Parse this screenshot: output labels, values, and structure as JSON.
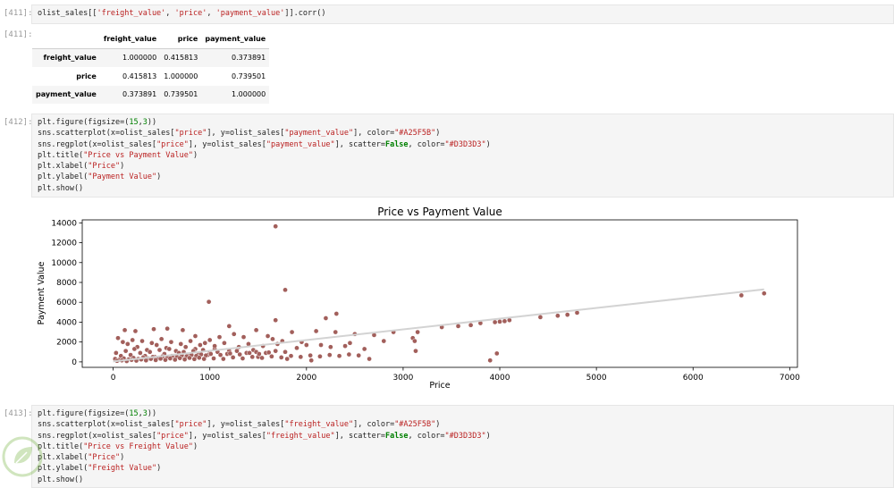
{
  "cells": [
    {
      "prompt": "[411]:",
      "code": [
        [
          {
            "t": "olist_sales[["
          },
          {
            "t": "'freight_value'",
            "c": "str"
          },
          {
            "t": ", "
          },
          {
            "t": "'price'",
            "c": "str"
          },
          {
            "t": ", "
          },
          {
            "t": "'payment_value'",
            "c": "str"
          },
          {
            "t": "]].corr()"
          }
        ]
      ]
    },
    {
      "prompt": "[412]:",
      "code": [
        [
          {
            "t": "plt.figure(figsize=("
          },
          {
            "t": "15",
            "c": "num"
          },
          {
            "t": ","
          },
          {
            "t": "3",
            "c": "num"
          },
          {
            "t": "))"
          }
        ],
        [
          {
            "t": "sns.scatterplot(x=olist_sales["
          },
          {
            "t": "\"price\"",
            "c": "str"
          },
          {
            "t": "], y=olist_sales["
          },
          {
            "t": "\"payment_value\"",
            "c": "str"
          },
          {
            "t": "], color="
          },
          {
            "t": "\"#A25F5B\"",
            "c": "str"
          },
          {
            "t": ")"
          }
        ],
        [
          {
            "t": "sns.regplot(x=olist_sales["
          },
          {
            "t": "\"price\"",
            "c": "str"
          },
          {
            "t": "], y=olist_sales["
          },
          {
            "t": "\"payment_value\"",
            "c": "str"
          },
          {
            "t": "], scatter="
          },
          {
            "t": "False",
            "c": "kw"
          },
          {
            "t": ", color="
          },
          {
            "t": "\"#D3D3D3\"",
            "c": "str"
          },
          {
            "t": ")"
          }
        ],
        [
          {
            "t": "plt.title("
          },
          {
            "t": "\"Price vs Payment Value\"",
            "c": "str"
          },
          {
            "t": ")"
          }
        ],
        [
          {
            "t": "plt.xlabel("
          },
          {
            "t": "\"Price\"",
            "c": "str"
          },
          {
            "t": ")"
          }
        ],
        [
          {
            "t": "plt.ylabel("
          },
          {
            "t": "\"Payment Value\"",
            "c": "str"
          },
          {
            "t": ")"
          }
        ],
        [
          {
            "t": "plt.show()"
          }
        ]
      ]
    },
    {
      "prompt": "[413]:",
      "code": [
        [
          {
            "t": "plt.figure(figsize=("
          },
          {
            "t": "15",
            "c": "num"
          },
          {
            "t": ","
          },
          {
            "t": "3",
            "c": "num"
          },
          {
            "t": "))"
          }
        ],
        [
          {
            "t": "sns.scatterplot(x=olist_sales["
          },
          {
            "t": "\"price\"",
            "c": "str"
          },
          {
            "t": "], y=olist_sales["
          },
          {
            "t": "\"freight_value\"",
            "c": "str"
          },
          {
            "t": "], color="
          },
          {
            "t": "\"#A25F5B\"",
            "c": "str"
          },
          {
            "t": ")"
          }
        ],
        [
          {
            "t": "sns.regplot(x=olist_sales["
          },
          {
            "t": "\"price\"",
            "c": "str"
          },
          {
            "t": "], y=olist_sales["
          },
          {
            "t": "\"freight_value\"",
            "c": "str"
          },
          {
            "t": "], scatter="
          },
          {
            "t": "False",
            "c": "kw"
          },
          {
            "t": ", color="
          },
          {
            "t": "\"#D3D3D3\"",
            "c": "str"
          },
          {
            "t": ")"
          }
        ],
        [
          {
            "t": "plt.title("
          },
          {
            "t": "\"Price vs Freight Value\"",
            "c": "str"
          },
          {
            "t": ")"
          }
        ],
        [
          {
            "t": "plt.xlabel("
          },
          {
            "t": "\"Price\"",
            "c": "str"
          },
          {
            "t": ")"
          }
        ],
        [
          {
            "t": "plt.ylabel("
          },
          {
            "t": "\"Freight Value\"",
            "c": "str"
          },
          {
            "t": ")"
          }
        ],
        [
          {
            "t": "plt.show()"
          }
        ]
      ]
    }
  ],
  "output_prompt": "[411]:",
  "dataframe": {
    "columns": [
      "freight_value",
      "price",
      "payment_value"
    ],
    "rows": [
      {
        "index": "freight_value",
        "values": [
          "1.000000",
          "0.415813",
          "0.373891"
        ]
      },
      {
        "index": "price",
        "values": [
          "0.415813",
          "1.000000",
          "0.739501"
        ]
      },
      {
        "index": "payment_value",
        "values": [
          "0.373891",
          "0.739501",
          "1.000000"
        ]
      }
    ]
  },
  "chart_data": {
    "type": "scatter",
    "title": "Price vs Payment Value",
    "xlabel": "Price",
    "ylabel": "Payment Value",
    "xlim": [
      -320,
      7080
    ],
    "ylim": [
      -550,
      14300
    ],
    "xticks": [
      0,
      1000,
      2000,
      3000,
      4000,
      5000,
      6000,
      7000
    ],
    "yticks": [
      0,
      2000,
      4000,
      6000,
      8000,
      10000,
      12000,
      14000
    ],
    "grid": false,
    "point_color": "#A25F5B",
    "regression_color": "#D3D3D3",
    "regression_line": {
      "x": [
        0,
        6735
      ],
      "y": [
        40,
        7300
      ]
    },
    "points": [
      [
        1680,
        13650
      ],
      [
        1780,
        7250
      ],
      [
        990,
        6050
      ],
      [
        2200,
        4400
      ],
      [
        2310,
        4850
      ],
      [
        1680,
        4200
      ],
      [
        1480,
        3200
      ],
      [
        1200,
        3600
      ],
      [
        1850,
        3000
      ],
      [
        2100,
        3100
      ],
      [
        2300,
        3000
      ],
      [
        2500,
        2800
      ],
      [
        2700,
        2700
      ],
      [
        2900,
        3000
      ],
      [
        3100,
        2400
      ],
      [
        3120,
        2100
      ],
      [
        3130,
        1100
      ],
      [
        3150,
        3000
      ],
      [
        3400,
        3500
      ],
      [
        3570,
        3600
      ],
      [
        3700,
        3700
      ],
      [
        3800,
        3900
      ],
      [
        3950,
        4000
      ],
      [
        4000,
        4050
      ],
      [
        4050,
        4100
      ],
      [
        4100,
        4200
      ],
      [
        3900,
        150
      ],
      [
        3970,
        850
      ],
      [
        2650,
        300
      ],
      [
        2050,
        150
      ],
      [
        1800,
        300
      ],
      [
        1500,
        500
      ],
      [
        1200,
        1100
      ],
      [
        4420,
        4500
      ],
      [
        4600,
        4650
      ],
      [
        4700,
        4750
      ],
      [
        4800,
        4950
      ],
      [
        6500,
        6700
      ],
      [
        6735,
        6900
      ],
      [
        120,
        3200
      ],
      [
        230,
        3100
      ],
      [
        420,
        3300
      ],
      [
        560,
        3350
      ],
      [
        720,
        3200
      ],
      [
        850,
        2600
      ],
      [
        1000,
        2200
      ],
      [
        1050,
        1300
      ],
      [
        1100,
        2500
      ],
      [
        1250,
        2800
      ],
      [
        1350,
        2500
      ],
      [
        1600,
        2600
      ],
      [
        1650,
        2300
      ],
      [
        1750,
        2100
      ],
      [
        1950,
        2000
      ],
      [
        2150,
        1700
      ],
      [
        2450,
        1900
      ],
      [
        2800,
        2100
      ],
      [
        50,
        2400
      ],
      [
        100,
        2000
      ],
      [
        150,
        1800
      ],
      [
        200,
        2200
      ],
      [
        250,
        1500
      ],
      [
        300,
        2100
      ],
      [
        350,
        1200
      ],
      [
        400,
        1900
      ],
      [
        450,
        1700
      ],
      [
        500,
        2300
      ],
      [
        550,
        1400
      ],
      [
        600,
        2000
      ],
      [
        650,
        1100
      ],
      [
        700,
        1800
      ],
      [
        750,
        1500
      ],
      [
        800,
        2100
      ],
      [
        850,
        1300
      ],
      [
        900,
        1700
      ],
      [
        950,
        1900
      ],
      [
        1000,
        900
      ],
      [
        1050,
        1600
      ],
      [
        1150,
        1900
      ],
      [
        1300,
        1500
      ],
      [
        1400,
        1800
      ],
      [
        1450,
        1200
      ],
      [
        1550,
        1600
      ],
      [
        1700,
        1800
      ],
      [
        1900,
        1400
      ],
      [
        2000,
        1700
      ],
      [
        2250,
        1500
      ],
      [
        2400,
        1600
      ],
      [
        2600,
        1300
      ],
      [
        30,
        900
      ],
      [
        80,
        600
      ],
      [
        130,
        1100
      ],
      [
        180,
        700
      ],
      [
        220,
        1300
      ],
      [
        280,
        900
      ],
      [
        330,
        600
      ],
      [
        380,
        1000
      ],
      [
        430,
        500
      ],
      [
        480,
        1200
      ],
      [
        530,
        800
      ],
      [
        580,
        1300
      ],
      [
        630,
        600
      ],
      [
        680,
        900
      ],
      [
        730,
        1000
      ],
      [
        780,
        700
      ],
      [
        830,
        1100
      ],
      [
        880,
        800
      ],
      [
        930,
        1200
      ],
      [
        980,
        700
      ],
      [
        1080,
        1000
      ],
      [
        1180,
        800
      ],
      [
        1280,
        1100
      ],
      [
        1380,
        900
      ],
      [
        1480,
        1000
      ],
      [
        1580,
        900
      ],
      [
        1680,
        1100
      ],
      [
        1780,
        1000
      ],
      [
        20,
        300
      ],
      [
        60,
        200
      ],
      [
        110,
        350
      ],
      [
        160,
        250
      ],
      [
        210,
        400
      ],
      [
        260,
        300
      ],
      [
        310,
        450
      ],
      [
        360,
        350
      ],
      [
        410,
        500
      ],
      [
        460,
        400
      ],
      [
        510,
        550
      ],
      [
        560,
        450
      ],
      [
        610,
        600
      ],
      [
        660,
        500
      ],
      [
        710,
        650
      ],
      [
        760,
        550
      ],
      [
        810,
        700
      ],
      [
        860,
        600
      ],
      [
        910,
        750
      ],
      [
        960,
        650
      ],
      [
        1010,
        800
      ],
      [
        1110,
        700
      ],
      [
        1210,
        850
      ],
      [
        1310,
        750
      ],
      [
        1410,
        900
      ],
      [
        1510,
        800
      ],
      [
        1610,
        950
      ],
      [
        40,
        100
      ],
      [
        90,
        150
      ],
      [
        140,
        80
      ],
      [
        190,
        200
      ],
      [
        240,
        120
      ],
      [
        290,
        250
      ],
      [
        340,
        150
      ],
      [
        390,
        300
      ],
      [
        440,
        180
      ],
      [
        490,
        320
      ],
      [
        540,
        200
      ],
      [
        590,
        350
      ],
      [
        640,
        220
      ],
      [
        690,
        380
      ],
      [
        740,
        250
      ],
      [
        790,
        400
      ],
      [
        840,
        280
      ],
      [
        890,
        420
      ],
      [
        940,
        300
      ],
      [
        1040,
        350
      ],
      [
        1140,
        300
      ],
      [
        1240,
        450
      ],
      [
        1340,
        350
      ],
      [
        1440,
        500
      ],
      [
        1540,
        400
      ],
      [
        1640,
        550
      ],
      [
        1740,
        450
      ],
      [
        1840,
        600
      ],
      [
        1940,
        500
      ],
      [
        2040,
        650
      ],
      [
        2140,
        550
      ],
      [
        2240,
        700
      ],
      [
        2340,
        600
      ],
      [
        2440,
        750
      ],
      [
        2540,
        650
      ]
    ]
  }
}
